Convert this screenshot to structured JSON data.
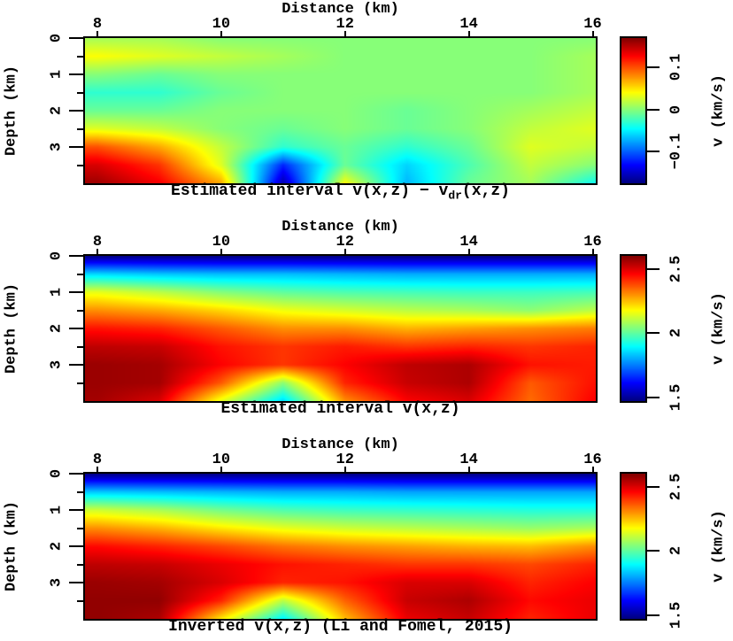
{
  "figure": {
    "background": "#ffffff",
    "text_color": "#000000",
    "frame_color": "#000000"
  },
  "chart_data": [
    {
      "type": "heatmap",
      "colormap": "jet",
      "title": "Estimated interval v(x,z) − vdr(x,z)",
      "title_pre": "Estimated interval v(x,z) − v",
      "title_sub": "dr",
      "title_post": "(x,z)",
      "xlabel": "Distance (km)",
      "ylabel": "Depth (km)",
      "x_range": [
        7.8,
        16.05
      ],
      "z_range": [
        0,
        4
      ],
      "x_ticks": [
        {
          "label": "8",
          "value": 8
        },
        {
          "label": "10",
          "value": 10
        },
        {
          "label": "12",
          "value": 12
        },
        {
          "label": "14",
          "value": 14
        },
        {
          "label": "16",
          "value": 16
        }
      ],
      "z_ticks": [
        {
          "label": "0",
          "value": 0
        },
        {
          "label": "1",
          "value": 1
        },
        {
          "label": "2",
          "value": 2
        },
        {
          "label": "3",
          "value": 3
        }
      ],
      "z_minor_ticks": [
        0.5,
        1.5,
        2.5,
        3.5
      ],
      "colorbar": {
        "label": "v (km/s)",
        "vmin": -0.175,
        "vmax": 0.17,
        "ticks": [
          {
            "label": "0.1",
            "value": 0.1
          },
          {
            "label": "0",
            "value": 0
          },
          {
            "label": "−0.1",
            "value": -0.1
          }
        ]
      },
      "grid": {
        "x": [
          8,
          9,
          10,
          11,
          12,
          13,
          14,
          15,
          16
        ],
        "z": [
          0,
          0.5,
          1,
          1.5,
          2,
          2.5,
          3,
          3.5,
          4
        ],
        "values": [
          [
            0.01,
            0.01,
            0.0,
            0.0,
            0.0,
            0.0,
            0.0,
            0.0,
            0.0
          ],
          [
            0.04,
            0.03,
            0.02,
            0.01,
            0.0,
            0.0,
            0.0,
            0.0,
            0.01
          ],
          [
            0.0,
            -0.01,
            0.0,
            0.0,
            0.0,
            0.0,
            0.0,
            0.0,
            0.01
          ],
          [
            -0.03,
            -0.03,
            -0.01,
            0.0,
            0.0,
            0.0,
            0.0,
            0.0,
            0.01
          ],
          [
            -0.01,
            -0.01,
            0.0,
            0.0,
            0.0,
            -0.01,
            0.0,
            0.01,
            0.02
          ],
          [
            0.03,
            0.02,
            0.0,
            -0.01,
            0.0,
            -0.01,
            0.0,
            0.02,
            0.03
          ],
          [
            0.1,
            0.07,
            0.02,
            -0.03,
            -0.01,
            -0.03,
            -0.01,
            0.03,
            0.02
          ],
          [
            0.14,
            0.11,
            0.03,
            -0.12,
            -0.01,
            -0.06,
            -0.02,
            0.02,
            0.0
          ],
          [
            0.16,
            0.13,
            0.07,
            -0.16,
            0.04,
            -0.07,
            -0.01,
            0.01,
            -0.04
          ]
        ]
      }
    },
    {
      "type": "heatmap",
      "colormap": "jet",
      "title": "Estimated interval v(x,z)",
      "title_pre": "Estimated interval v(x,z)",
      "title_sub": "",
      "title_post": "",
      "xlabel": "Distance (km)",
      "ylabel": "Depth (km)",
      "x_range": [
        7.8,
        16.05
      ],
      "z_range": [
        0,
        4
      ],
      "x_ticks": [
        {
          "label": "8",
          "value": 8
        },
        {
          "label": "10",
          "value": 10
        },
        {
          "label": "12",
          "value": 12
        },
        {
          "label": "14",
          "value": 14
        },
        {
          "label": "16",
          "value": 16
        }
      ],
      "z_ticks": [
        {
          "label": "0",
          "value": 0
        },
        {
          "label": "1",
          "value": 1
        },
        {
          "label": "2",
          "value": 2
        },
        {
          "label": "3",
          "value": 3
        }
      ],
      "z_minor_ticks": [
        0.5,
        1.5,
        2.5,
        3.5
      ],
      "colorbar": {
        "label": "v (km/s)",
        "vmin": 1.47,
        "vmax": 2.6,
        "ticks": [
          {
            "label": "2.5",
            "value": 2.5
          },
          {
            "label": "2",
            "value": 2
          },
          {
            "label": "1.5",
            "value": 1.5
          }
        ]
      },
      "grid": {
        "x": [
          8,
          9,
          10,
          11,
          12,
          13,
          14,
          15,
          16
        ],
        "z": [
          0,
          0.5,
          1,
          1.5,
          2,
          2.5,
          3,
          3.5,
          4
        ],
        "values": [
          [
            1.47,
            1.47,
            1.47,
            1.47,
            1.47,
            1.47,
            1.47,
            1.47,
            1.47
          ],
          [
            1.85,
            1.83,
            1.82,
            1.82,
            1.81,
            1.8,
            1.8,
            1.8,
            1.8
          ],
          [
            2.15,
            2.1,
            2.04,
            2.0,
            1.98,
            1.97,
            1.96,
            1.96,
            1.97
          ],
          [
            2.3,
            2.27,
            2.22,
            2.16,
            2.13,
            2.1,
            2.08,
            2.05,
            2.1
          ],
          [
            2.44,
            2.42,
            2.36,
            2.3,
            2.3,
            2.26,
            2.28,
            2.3,
            2.32
          ],
          [
            2.53,
            2.52,
            2.44,
            2.4,
            2.43,
            2.4,
            2.42,
            2.4,
            2.42
          ],
          [
            2.57,
            2.56,
            2.46,
            2.4,
            2.46,
            2.53,
            2.55,
            2.44,
            2.43
          ],
          [
            2.57,
            2.56,
            2.36,
            2.05,
            2.42,
            2.52,
            2.55,
            2.36,
            2.44
          ],
          [
            2.56,
            2.5,
            2.15,
            1.85,
            2.3,
            2.46,
            2.5,
            2.34,
            2.46
          ]
        ]
      }
    },
    {
      "type": "heatmap",
      "colormap": "jet",
      "title": "Inverted v(x,z) (Li and Fomel, 2015)",
      "title_pre": "Inverted v(x,z) (Li and Fomel, 2015)",
      "title_sub": "",
      "title_post": "",
      "xlabel": "Distance (km)",
      "ylabel": "Depth (km)",
      "x_range": [
        7.8,
        16.05
      ],
      "z_range": [
        0,
        4
      ],
      "x_ticks": [
        {
          "label": "8",
          "value": 8
        },
        {
          "label": "10",
          "value": 10
        },
        {
          "label": "12",
          "value": 12
        },
        {
          "label": "14",
          "value": 14
        },
        {
          "label": "16",
          "value": 16
        }
      ],
      "z_ticks": [
        {
          "label": "0",
          "value": 0
        },
        {
          "label": "1",
          "value": 1
        },
        {
          "label": "2",
          "value": 2
        },
        {
          "label": "3",
          "value": 3
        }
      ],
      "z_minor_ticks": [
        0.5,
        1.5,
        2.5,
        3.5
      ],
      "colorbar": {
        "label": "v (km/s)",
        "vmin": 1.47,
        "vmax": 2.6,
        "ticks": [
          {
            "label": "2.5",
            "value": 2.5
          },
          {
            "label": "2",
            "value": 2
          },
          {
            "label": "1.5",
            "value": 1.5
          }
        ]
      },
      "grid": {
        "x": [
          8,
          9,
          10,
          11,
          12,
          13,
          14,
          15,
          16
        ],
        "z": [
          0,
          0.5,
          1,
          1.5,
          2,
          2.5,
          3,
          3.5,
          4
        ],
        "values": [
          [
            1.47,
            1.47,
            1.47,
            1.47,
            1.47,
            1.47,
            1.47,
            1.47,
            1.47
          ],
          [
            1.83,
            1.82,
            1.81,
            1.8,
            1.8,
            1.79,
            1.79,
            1.79,
            1.79
          ],
          [
            2.12,
            2.08,
            2.02,
            1.98,
            1.96,
            1.95,
            1.94,
            1.93,
            1.93
          ],
          [
            2.3,
            2.26,
            2.2,
            2.15,
            2.12,
            2.1,
            2.08,
            2.06,
            2.08
          ],
          [
            2.45,
            2.42,
            2.38,
            2.33,
            2.3,
            2.28,
            2.26,
            2.25,
            2.3
          ],
          [
            2.53,
            2.52,
            2.48,
            2.44,
            2.42,
            2.4,
            2.4,
            2.38,
            2.42
          ],
          [
            2.57,
            2.56,
            2.5,
            2.42,
            2.44,
            2.5,
            2.5,
            2.42,
            2.46
          ],
          [
            2.58,
            2.58,
            2.42,
            2.1,
            2.35,
            2.52,
            2.55,
            2.45,
            2.48
          ],
          [
            2.58,
            2.55,
            2.2,
            1.88,
            2.25,
            2.48,
            2.52,
            2.42,
            2.48
          ]
        ]
      }
    }
  ]
}
